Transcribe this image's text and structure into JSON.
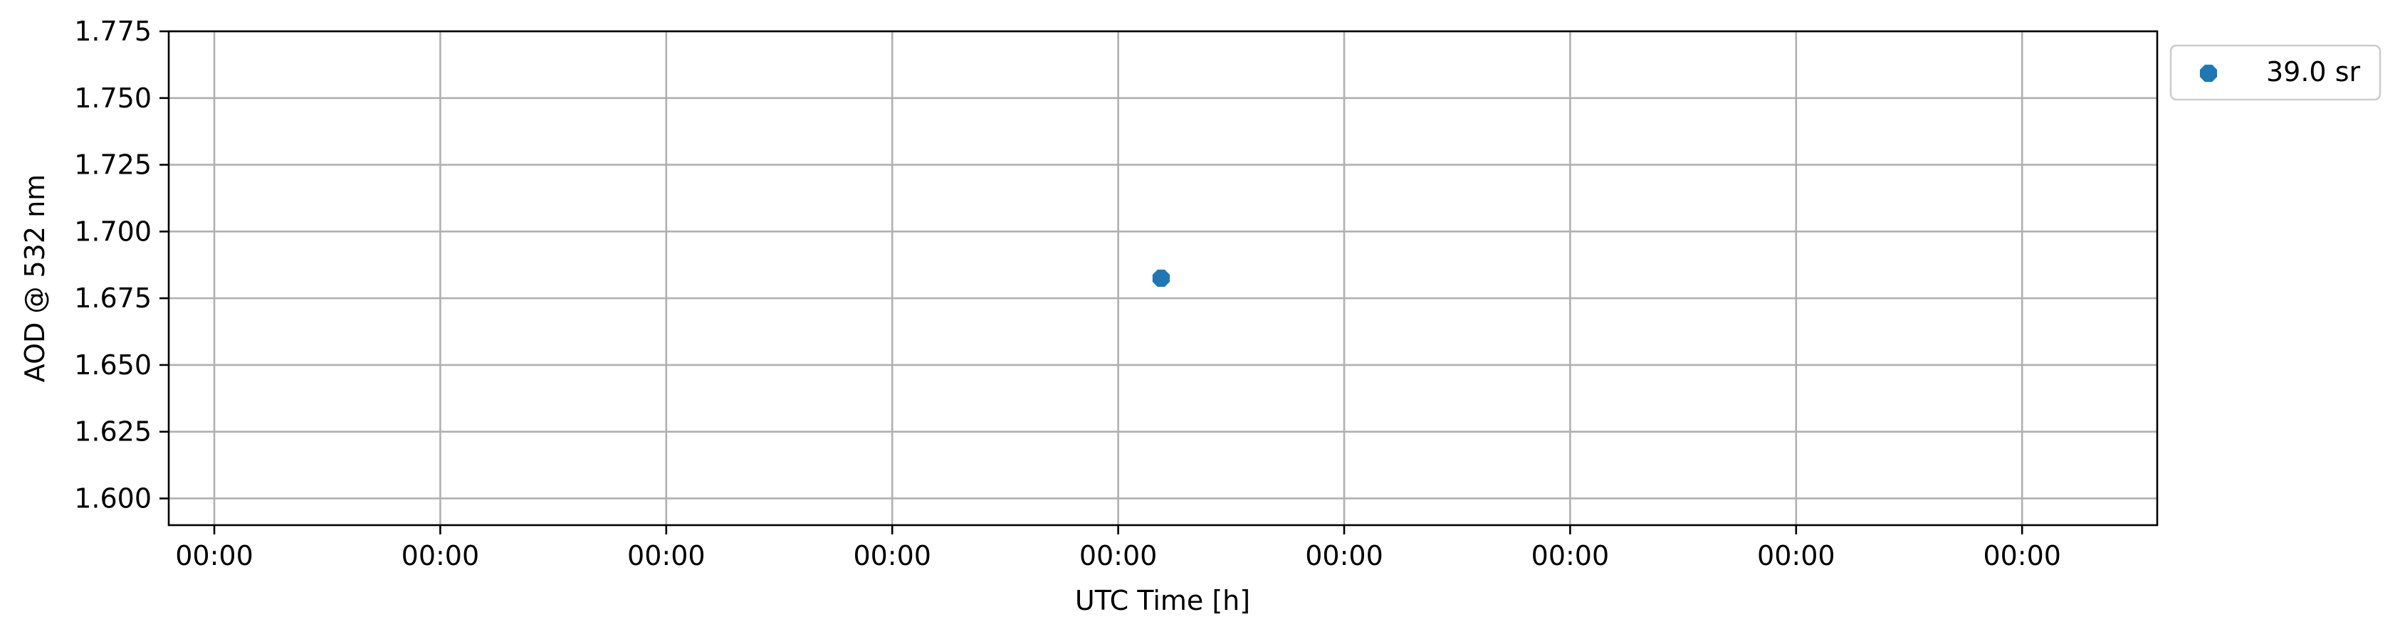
{
  "chart_data": {
    "type": "scatter",
    "title": "",
    "xlabel": "UTC Time [h]",
    "ylabel": "AOD @ 532 nm",
    "x_tick_labels": [
      "00:00",
      "00:00",
      "00:00",
      "00:00",
      "00:00",
      "00:00",
      "00:00",
      "00:00",
      "00:00"
    ],
    "y_ticks": [
      1.6,
      1.625,
      1.65,
      1.675,
      1.7,
      1.725,
      1.75,
      1.775
    ],
    "ylim": [
      1.59,
      1.775
    ],
    "grid": true,
    "legend_position": "outside top-right",
    "series": [
      {
        "name": "39.0 sr",
        "marker": "octagon",
        "color": "#1f77b4",
        "points": [
          {
            "x_tick_index": 4.19,
            "y": 1.6825
          }
        ]
      }
    ]
  }
}
